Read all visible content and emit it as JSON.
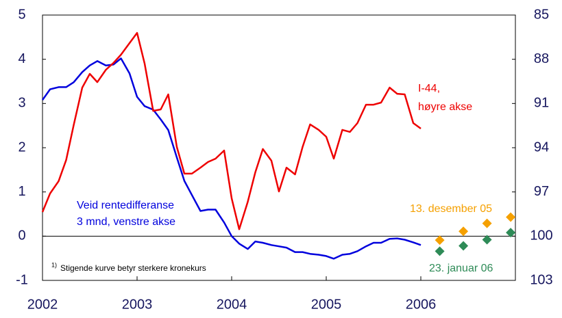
{
  "chart_data": {
    "type": "line",
    "x": [
      2002,
      2002.08,
      2002.17,
      2002.25,
      2002.33,
      2002.42,
      2002.5,
      2002.58,
      2002.67,
      2002.75,
      2002.83,
      2002.92,
      2003,
      2003.08,
      2003.17,
      2003.25,
      2003.33,
      2003.42,
      2003.5,
      2003.58,
      2003.67,
      2003.75,
      2003.83,
      2003.92,
      2004,
      2004.08,
      2004.17,
      2004.25,
      2004.33,
      2004.42,
      2004.5,
      2004.58,
      2004.67,
      2004.75,
      2004.83,
      2004.92,
      2005,
      2005.08,
      2005.17,
      2005.25,
      2005.33,
      2005.42,
      2005.5,
      2005.58,
      2005.67,
      2005.75,
      2005.83,
      2005.92,
      2006
    ],
    "series": [
      {
        "color": "#0000dd",
        "axis": "y",
        "values": [
          3.08,
          3.32,
          3.37,
          3.37,
          3.48,
          3.71,
          3.86,
          3.96,
          3.86,
          3.88,
          4.02,
          3.68,
          3.15,
          2.94,
          2.86,
          2.64,
          2.4,
          1.78,
          1.25,
          0.93,
          0.57,
          0.6,
          0.6,
          0.31,
          0,
          -0.17,
          -0.29,
          -0.12,
          -0.15,
          -0.2,
          -0.23,
          -0.26,
          -0.36,
          -0.36,
          -0.4,
          -0.42,
          -0.45,
          -0.51,
          -0.42,
          -0.4,
          -0.34,
          -0.23,
          -0.15,
          -0.15,
          -0.06,
          -0.05,
          -0.08,
          -0.14,
          -0.2
        ]
      },
      {
        "color": "#ee0000",
        "axis": "y2",
        "values": [
          98.36,
          97.11,
          96.27,
          94.84,
          92.47,
          89.92,
          88.99,
          89.55,
          88.71,
          88.25,
          87.69,
          86.9,
          86.21,
          88.29,
          91.5,
          91.4,
          90.38,
          93.95,
          95.76,
          95.76,
          95.35,
          94.97,
          94.74,
          94.19,
          97.43,
          99.53,
          97.67,
          95.67,
          94.09,
          94.88,
          96.97,
          95.35,
          95.81,
          93.95,
          92.42,
          92.79,
          93.26,
          94.74,
          92.79,
          92.93,
          92.33,
          91.08,
          91.08,
          90.94,
          89.92,
          90.34,
          90.38,
          92.33,
          92.7
        ]
      }
    ],
    "points": [
      {
        "color": "#f5a000",
        "x": [
          2006.2,
          2006.45,
          2006.7,
          2006.95
        ],
        "values": [
          -0.09,
          0.11,
          0.29,
          0.43
        ]
      },
      {
        "color": "#2e8b57",
        "x": [
          2006.2,
          2006.45,
          2006.7,
          2006.95
        ],
        "values": [
          -0.34,
          -0.22,
          -0.08,
          0.08
        ]
      }
    ],
    "xlim": [
      2002,
      2007
    ],
    "xticks": [
      2002,
      2003,
      2004,
      2005,
      2006
    ],
    "ylim": [
      -1,
      5
    ],
    "yticks": [
      -1,
      0,
      1,
      2,
      3,
      4,
      5
    ],
    "y2lim": [
      103,
      85
    ],
    "y2ticks": [
      85,
      88,
      91,
      94,
      97,
      100,
      103
    ],
    "annotations": [
      {
        "text": "I-44,",
        "color": "#ee0000"
      },
      {
        "text": "høyre akse",
        "color": "#ee0000"
      },
      {
        "text": "Veid rentedifferanse",
        "color": "#0000dd"
      },
      {
        "text": "3 mnd, venstre akse",
        "color": "#0000dd"
      },
      {
        "text": "13. desember 05",
        "color": "#f5a000"
      },
      {
        "text": "23. januar 06",
        "color": "#2e8b57"
      }
    ],
    "footnote_marker": "1)",
    "footnote": "Stigende kurve betyr sterkere kronekurs"
  }
}
